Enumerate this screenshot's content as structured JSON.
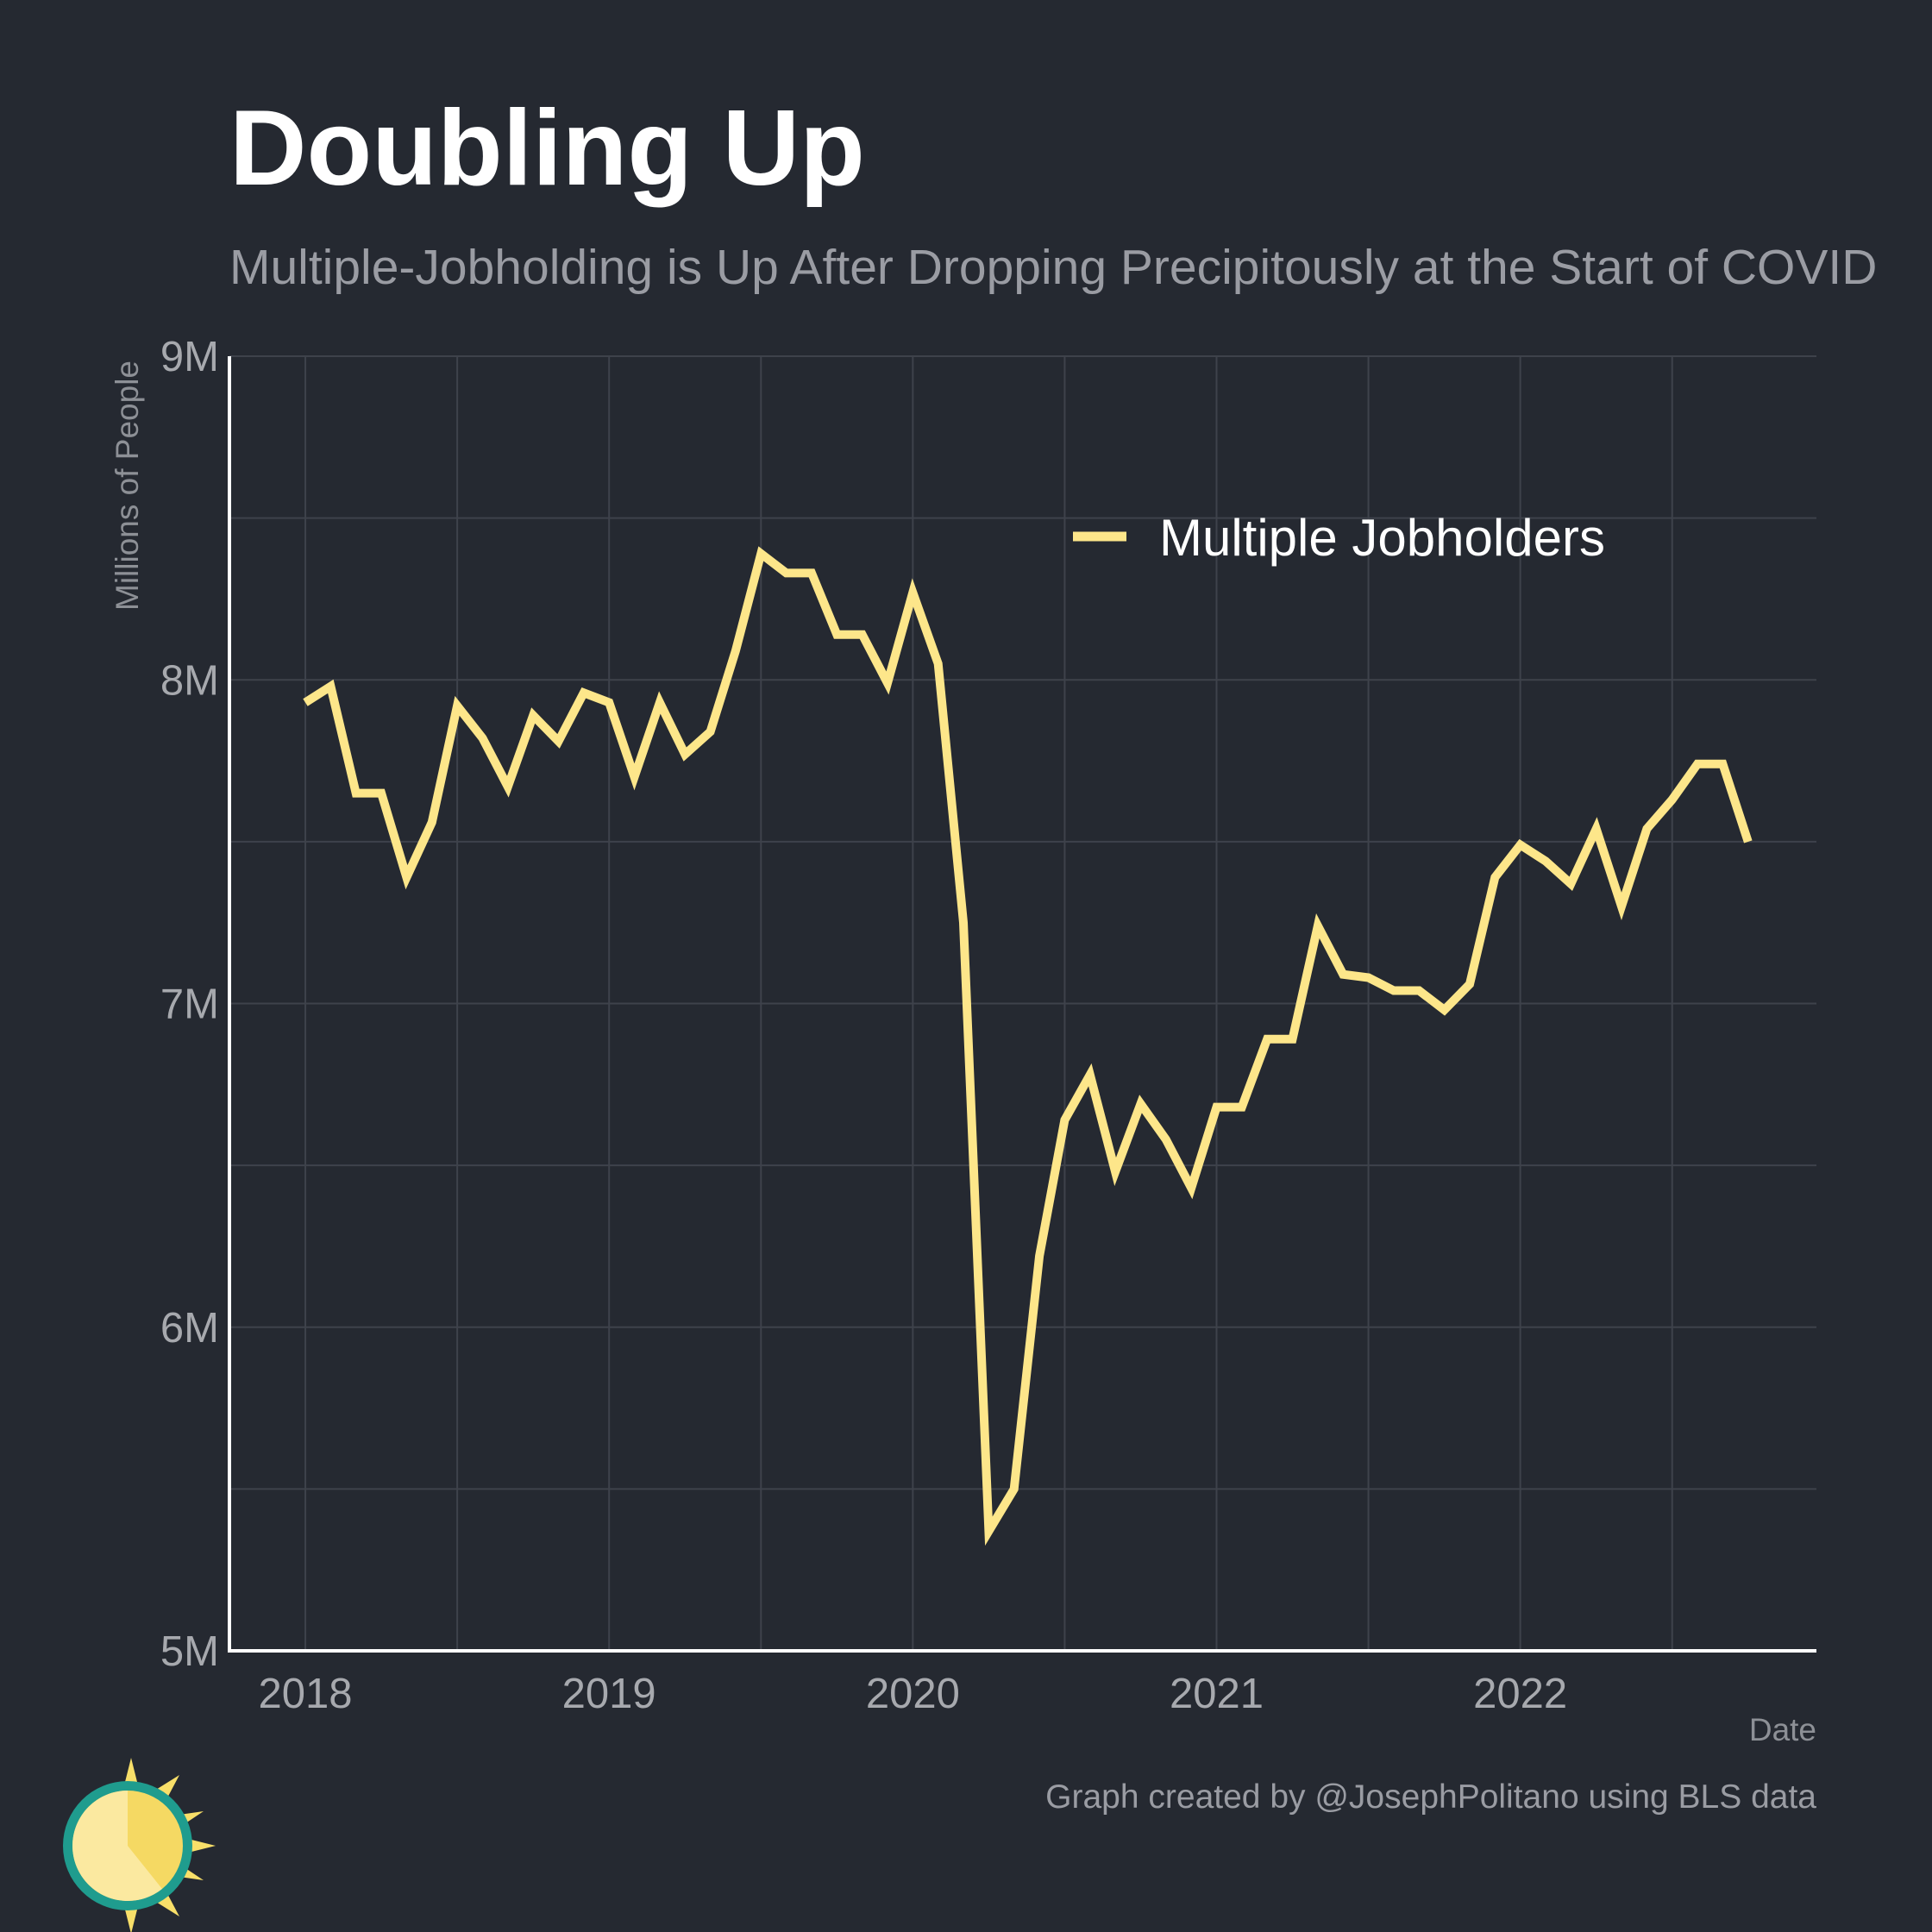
{
  "title": "Doubling Up",
  "subtitle": "Multiple-Jobholding is Up After Dropping Precipitously at the Start of COVID",
  "credit": "Graph created by @JosephPolitano using BLS data",
  "colors": {
    "background": "#252931",
    "line": "#fde68a",
    "grid": "#3e424b",
    "axis": "#ffffff"
  },
  "chart_data": {
    "type": "line",
    "xlabel": "Date",
    "ylabel": "Millions of People",
    "xlim": [
      2017.75,
      2022.975
    ],
    "ylim": [
      5,
      9
    ],
    "x_ticks": [
      2018,
      2019,
      2020,
      2021,
      2022
    ],
    "x_tick_labels": [
      "2018",
      "2019",
      "2020",
      "2021",
      "2022"
    ],
    "y_ticks": [
      5,
      6,
      7,
      8,
      9
    ],
    "y_tick_labels": [
      "5M",
      "6M",
      "7M",
      "8M",
      "9M"
    ],
    "grid": true,
    "legend_position": "top-right",
    "series": [
      {
        "name": "Multiple Jobholders",
        "color": "#fde68a",
        "x_start": "2018-01",
        "frequency": "monthly",
        "values": [
          7.93,
          7.98,
          7.65,
          7.65,
          7.39,
          7.56,
          7.92,
          7.82,
          7.67,
          7.89,
          7.81,
          7.96,
          7.93,
          7.7,
          7.93,
          7.77,
          7.84,
          8.09,
          8.39,
          8.33,
          8.33,
          8.14,
          8.14,
          7.99,
          8.27,
          8.05,
          7.25,
          5.37,
          5.5,
          6.22,
          6.64,
          6.78,
          6.48,
          6.69,
          6.58,
          6.43,
          6.68,
          6.68,
          6.89,
          6.89,
          7.24,
          7.09,
          7.08,
          7.04,
          7.04,
          6.98,
          7.06,
          7.39,
          7.49,
          7.44,
          7.37,
          7.54,
          7.3,
          7.54,
          7.63,
          7.74,
          7.74,
          7.5
        ]
      }
    ]
  }
}
